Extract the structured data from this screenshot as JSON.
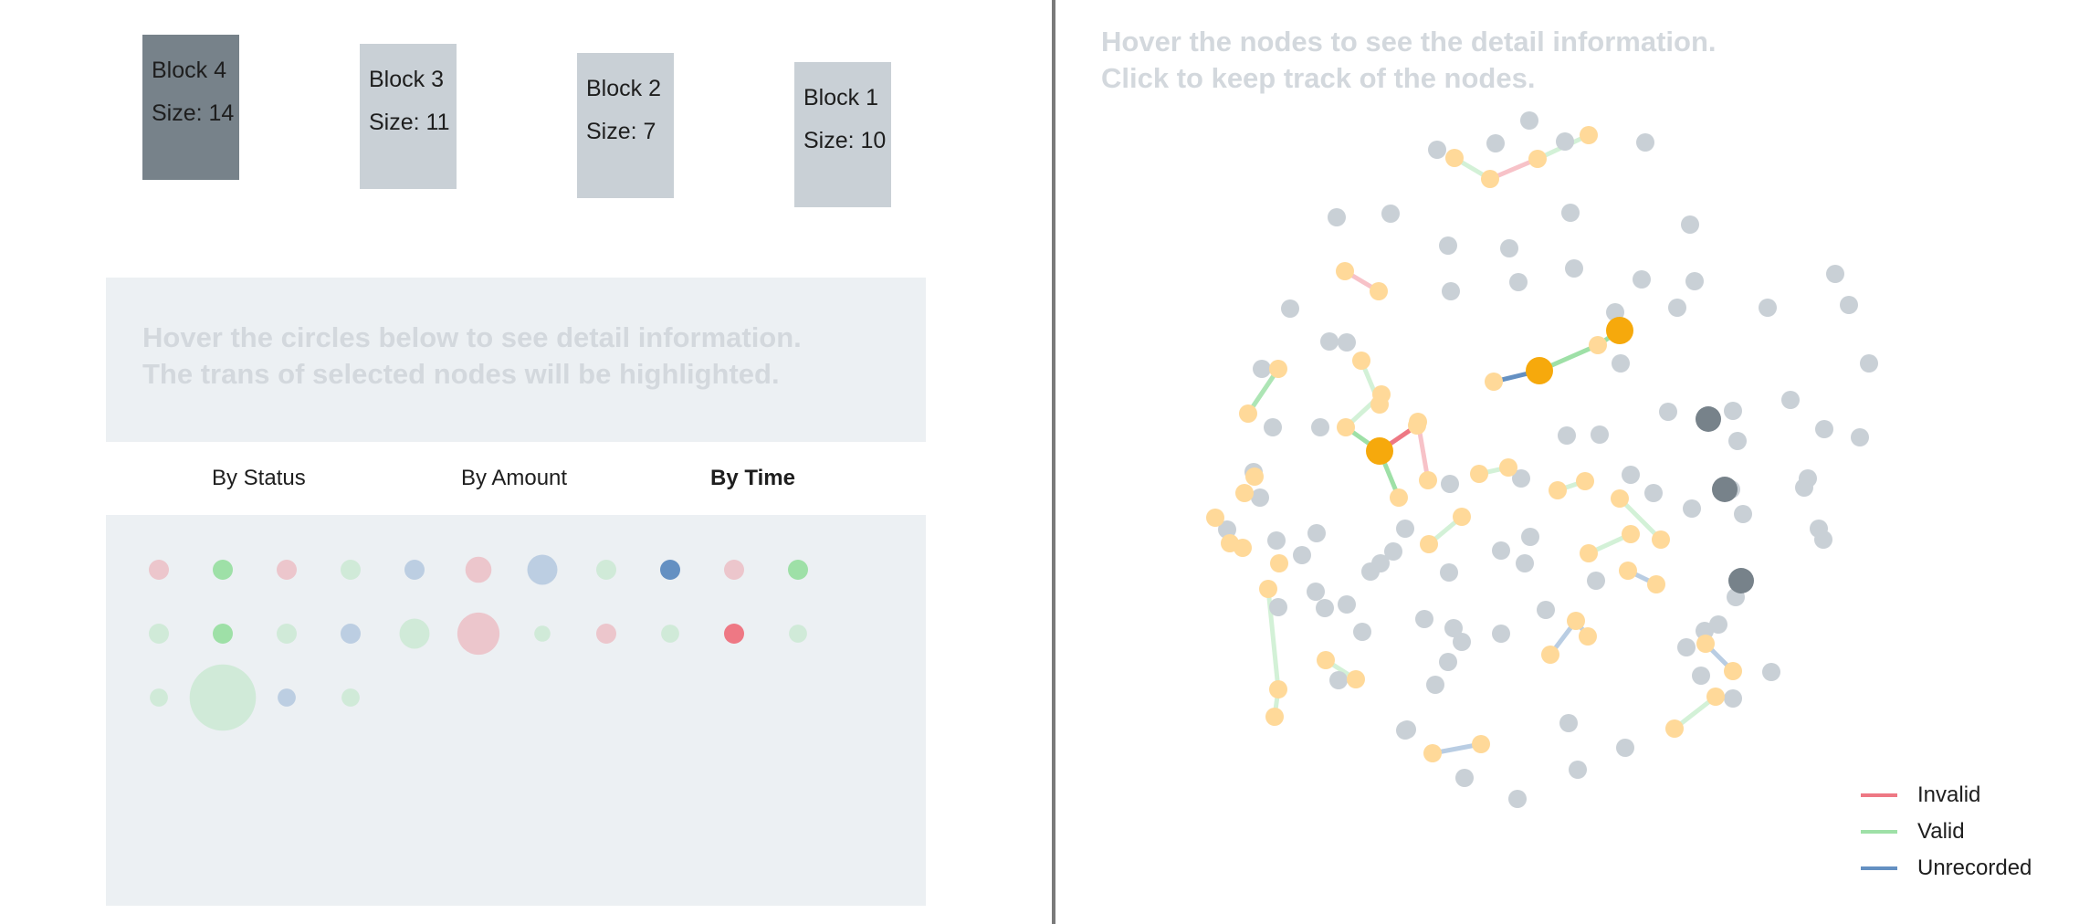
{
  "blocks": [
    {
      "title": "Block 4",
      "size_text": "Size: 14",
      "active": true
    },
    {
      "title": "Block 3",
      "size_text": "Size: 11",
      "active": false
    },
    {
      "title": "Block 2",
      "size_text": "Size: 7",
      "active": false
    },
    {
      "title": "Block 1",
      "size_text": "Size: 10",
      "active": false
    }
  ],
  "circles_info": {
    "line1": "Hover the circles below to see detail information.",
    "line2": "The trans of selected nodes will be highlighted."
  },
  "tabs": [
    {
      "label": "By Status",
      "selected": false
    },
    {
      "label": "By Amount",
      "selected": false
    },
    {
      "label": "By Time",
      "selected": true
    }
  ],
  "colors": {
    "invalid": "#ee7884",
    "valid": "#9ee0a7",
    "unrecorded": "#6490c2",
    "tx_node": "#ffd999",
    "tx_node_selected": "#f6a90c",
    "address_node": "#c9d0d6",
    "address_node_selected": "#77828a"
  },
  "circles": [
    {
      "status": "invalid",
      "emphasis": false,
      "size": 1
    },
    {
      "status": "valid",
      "emphasis": true,
      "size": 1
    },
    {
      "status": "invalid",
      "emphasis": false,
      "size": 1
    },
    {
      "status": "valid",
      "emphasis": false,
      "size": 1
    },
    {
      "status": "unrecorded",
      "emphasis": false,
      "size": 1
    },
    {
      "status": "invalid",
      "emphasis": false,
      "size": 1.3
    },
    {
      "status": "unrecorded",
      "emphasis": false,
      "size": 1.5
    },
    {
      "status": "valid",
      "emphasis": false,
      "size": 1
    },
    {
      "status": "unrecorded",
      "emphasis": true,
      "size": 1
    },
    {
      "status": "invalid",
      "emphasis": false,
      "size": 1
    },
    {
      "status": "valid",
      "emphasis": true,
      "size": 1
    },
    {
      "status": "valid",
      "emphasis": false,
      "size": 1
    },
    {
      "status": "valid",
      "emphasis": true,
      "size": 1
    },
    {
      "status": "valid",
      "emphasis": false,
      "size": 1
    },
    {
      "status": "unrecorded",
      "emphasis": false,
      "size": 1
    },
    {
      "status": "valid",
      "emphasis": false,
      "size": 1.5
    },
    {
      "status": "invalid",
      "emphasis": false,
      "size": 2.1
    },
    {
      "status": "valid",
      "emphasis": false,
      "size": 0.8
    },
    {
      "status": "invalid",
      "emphasis": false,
      "size": 1
    },
    {
      "status": "valid",
      "emphasis": false,
      "size": 0.9
    },
    {
      "status": "invalid",
      "emphasis": true,
      "size": 1
    },
    {
      "status": "valid",
      "emphasis": false,
      "size": 0.9
    },
    {
      "status": "valid",
      "emphasis": false,
      "size": 0.9
    },
    {
      "status": "valid",
      "emphasis": false,
      "size": 3.3
    },
    {
      "status": "unrecorded",
      "emphasis": false,
      "size": 0.9
    },
    {
      "status": "valid",
      "emphasis": false,
      "size": 0.9
    }
  ],
  "network_hint": {
    "line1": "Hover the nodes to see the detail information.",
    "line2": "Click to keep track of the nodes."
  },
  "legend": [
    {
      "label": "Invalid",
      "status": "invalid"
    },
    {
      "label": "Valid",
      "status": "valid"
    },
    {
      "label": "Unrecorded",
      "status": "unrecorded"
    }
  ]
}
